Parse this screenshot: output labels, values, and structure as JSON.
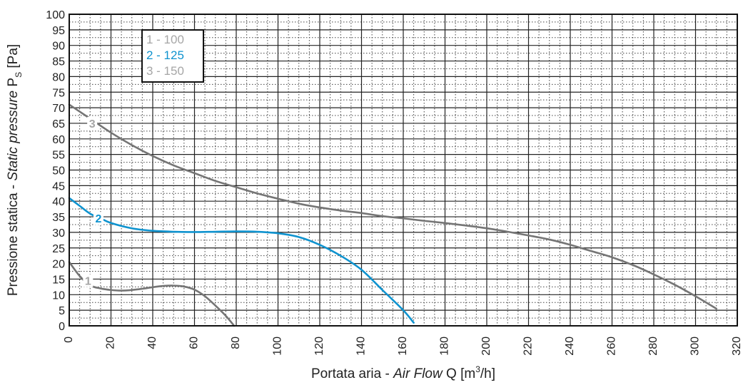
{
  "chart_data": {
    "type": "line",
    "xlabel": {
      "prefix": "Portata aria - ",
      "italic": "Air Flow",
      "suffix": " Q [m",
      "sup": "3",
      "end": "/h]"
    },
    "ylabel": {
      "prefix": "Pressione statica - ",
      "italic": "Static pressure",
      "suffix": " P",
      "sub": "S",
      "end": " [Pa]"
    },
    "xlim": [
      0,
      320
    ],
    "ylim": [
      0,
      100
    ],
    "x_ticks": [
      0,
      20,
      40,
      60,
      80,
      100,
      120,
      140,
      160,
      180,
      200,
      220,
      240,
      260,
      280,
      300,
      320
    ],
    "y_ticks": [
      0,
      5,
      10,
      15,
      20,
      25,
      30,
      35,
      40,
      45,
      50,
      55,
      60,
      65,
      70,
      75,
      80,
      85,
      90,
      95,
      100
    ],
    "grid": true,
    "legend_position": "top-left",
    "legend": [
      {
        "label": "1 - 100",
        "color": "#a6a6a6"
      },
      {
        "label": "2 - 125",
        "color": "#0f93cf"
      },
      {
        "label": "3 - 150",
        "color": "#a6a6a6"
      }
    ],
    "series": [
      {
        "name": "1 - 100",
        "curve_label": "1",
        "label_at": [
          9,
          14.5
        ],
        "color": "#757575",
        "points": [
          [
            0,
            20.5
          ],
          [
            5,
            16
          ],
          [
            10,
            13
          ],
          [
            15,
            12
          ],
          [
            20,
            11.5
          ],
          [
            25,
            11.3
          ],
          [
            30,
            11.5
          ],
          [
            35,
            11.9
          ],
          [
            40,
            12.4
          ],
          [
            45,
            12.8
          ],
          [
            50,
            12.9
          ],
          [
            55,
            12.6
          ],
          [
            60,
            11.6
          ],
          [
            65,
            9.5
          ],
          [
            70,
            6.5
          ],
          [
            75,
            3.2
          ],
          [
            79,
            0
          ]
        ]
      },
      {
        "name": "2 - 125",
        "curve_label": "2",
        "label_at": [
          14,
          34.5
        ],
        "color": "#0f93cf",
        "points": [
          [
            0,
            41
          ],
          [
            5,
            38.5
          ],
          [
            10,
            36
          ],
          [
            15,
            34.5
          ],
          [
            20,
            33
          ],
          [
            30,
            31.3
          ],
          [
            40,
            30.5
          ],
          [
            50,
            30.2
          ],
          [
            60,
            30.1
          ],
          [
            70,
            30.2
          ],
          [
            80,
            30.3
          ],
          [
            90,
            30.2
          ],
          [
            100,
            29.7
          ],
          [
            110,
            28.5
          ],
          [
            120,
            26
          ],
          [
            130,
            22.5
          ],
          [
            140,
            18
          ],
          [
            150,
            11.5
          ],
          [
            160,
            5
          ],
          [
            165,
            1
          ]
        ]
      },
      {
        "name": "3 - 150",
        "curve_label": "3",
        "label_at": [
          11,
          65
        ],
        "color": "#757575",
        "points": [
          [
            0,
            71
          ],
          [
            10,
            66.5
          ],
          [
            20,
            62
          ],
          [
            30,
            58
          ],
          [
            40,
            54.5
          ],
          [
            50,
            51.5
          ],
          [
            60,
            49
          ],
          [
            70,
            46.5
          ],
          [
            80,
            44.5
          ],
          [
            90,
            42.5
          ],
          [
            100,
            40.8
          ],
          [
            110,
            39.2
          ],
          [
            120,
            38
          ],
          [
            130,
            37
          ],
          [
            140,
            36.2
          ],
          [
            150,
            35.2
          ],
          [
            160,
            34.5
          ],
          [
            170,
            33.7
          ],
          [
            180,
            33
          ],
          [
            190,
            32.2
          ],
          [
            200,
            31.3
          ],
          [
            210,
            30.2
          ],
          [
            220,
            29
          ],
          [
            230,
            27.7
          ],
          [
            240,
            26
          ],
          [
            250,
            24
          ],
          [
            260,
            22
          ],
          [
            270,
            19.5
          ],
          [
            280,
            16.5
          ],
          [
            290,
            13.2
          ],
          [
            300,
            9.5
          ],
          [
            310,
            5.5
          ]
        ]
      }
    ]
  }
}
